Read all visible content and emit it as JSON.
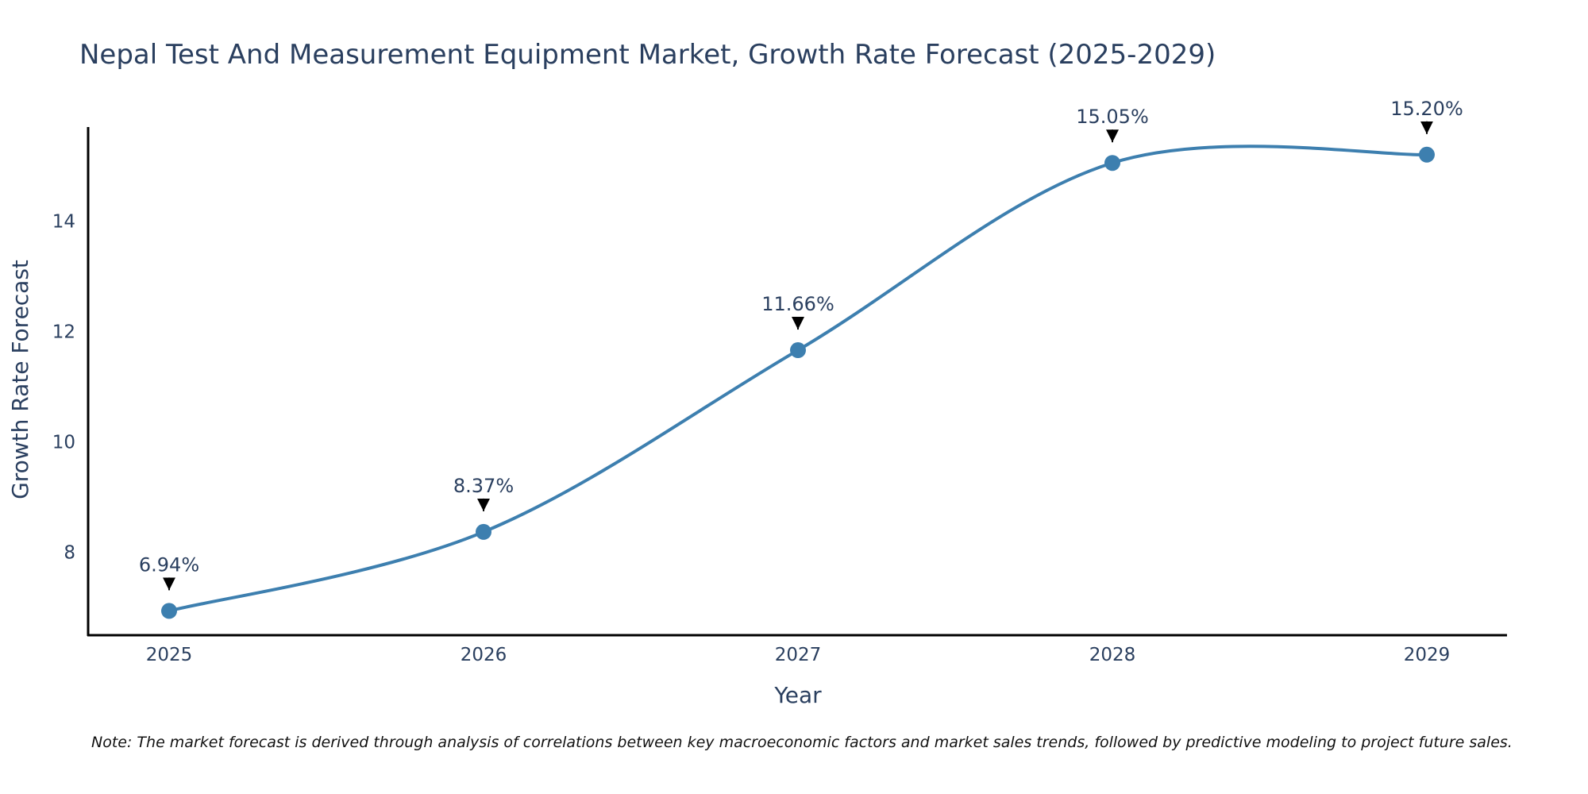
{
  "chart_data": {
    "type": "line",
    "title": "Nepal Test And Measurement Equipment Market, Growth Rate Forecast (2025-2029)",
    "xlabel": "Year",
    "ylabel": "Growth Rate Forecast",
    "categories": [
      "2025",
      "2026",
      "2027",
      "2028",
      "2029"
    ],
    "series": [
      {
        "name": "Growth Rate Forecast",
        "values": [
          6.94,
          8.37,
          11.66,
          15.05,
          15.2
        ],
        "labels": [
          "6.94%",
          "8.37%",
          "11.66%",
          "15.05%",
          "15.20%"
        ]
      }
    ],
    "ylim": [
      6.5,
      15.7
    ],
    "yticks": [
      8,
      10,
      12,
      14
    ],
    "ytick_labels": [
      "8",
      "10",
      "12",
      "14"
    ],
    "grid": false,
    "legend": "none",
    "colors": {
      "line": "#3d7faf",
      "marker": "#3d7faf",
      "axis": "#000000",
      "text": "#2a3f5f",
      "arrow": "#000000"
    },
    "note": "Note: The market forecast is derived through analysis of correlations between key macroeconomic factors and market sales trends, followed by predictive modeling to project future sales."
  }
}
